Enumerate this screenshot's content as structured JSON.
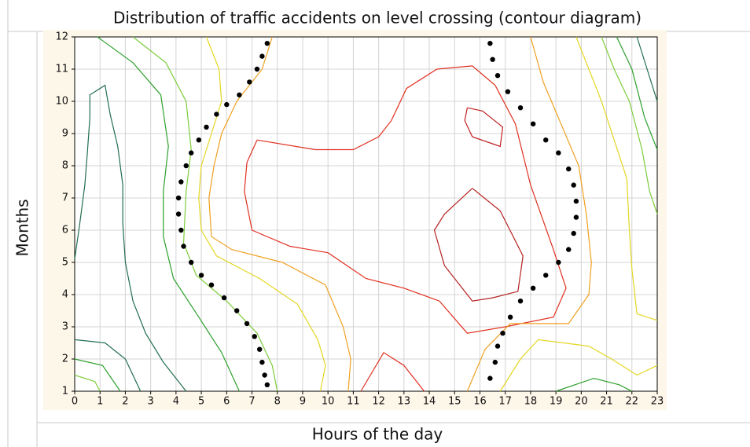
{
  "chart_data": {
    "type": "contour",
    "title": "Distribution of traffic accidents on level crossing (contour diagram)",
    "xlabel": "Hours of the day",
    "ylabel": "Months",
    "xlim": [
      0,
      23
    ],
    "ylim": [
      1,
      12
    ],
    "xticks": [
      0,
      1,
      2,
      3,
      4,
      5,
      6,
      7,
      8,
      9,
      10,
      11,
      12,
      13,
      14,
      15,
      16,
      17,
      18,
      19,
      20,
      21,
      22,
      23
    ],
    "yticks": [
      1,
      2,
      3,
      4,
      5,
      6,
      7,
      8,
      9,
      10,
      11,
      12
    ],
    "grid": true,
    "contours": [
      {
        "color": "#226e4e",
        "x": [
          0,
          0.2,
          0.4,
          0.5,
          0.6,
          0.6,
          1.2,
          1.4,
          1.7,
          1.9,
          1.9,
          2.0,
          2.3,
          2.8,
          3.5,
          4.4
        ],
        "y": [
          5.1,
          6.2,
          7.4,
          8.4,
          9.5,
          10.2,
          10.5,
          9.6,
          8.6,
          7.4,
          6.2,
          5.0,
          3.8,
          2.8,
          1.9,
          1
        ]
      },
      {
        "color": "#2ca02c",
        "x": [
          0.9,
          2.3,
          3.4,
          3.7,
          3.5,
          3.5,
          3.9,
          4.9,
          5.8,
          6.5
        ],
        "y": [
          12,
          11.2,
          10.2,
          8.6,
          7.2,
          5.8,
          4.5,
          3.3,
          2.2,
          1
        ]
      },
      {
        "color": "#7ccd3c",
        "x": [
          2.3,
          3.6,
          4.4,
          4.6,
          4.4,
          4.3,
          4.8,
          6.0,
          7.2,
          7.8,
          8.0
        ],
        "y": [
          12,
          11.2,
          10,
          8.5,
          7.2,
          5.6,
          4.6,
          3.8,
          2.8,
          1.8,
          1
        ]
      },
      {
        "color": "#e3d622",
        "x": [
          5.2,
          5.7,
          5.8,
          5.4,
          5.0,
          4.9,
          5.0,
          5.6,
          7.3,
          8.8,
          9.6,
          9.9,
          9.7
        ],
        "y": [
          12,
          11,
          10,
          9,
          8,
          7,
          6,
          5.2,
          4.5,
          3.7,
          2.6,
          1.8,
          1
        ]
      },
      {
        "color": "#f0a020",
        "x": [
          7.8,
          7.4,
          6.4,
          5.8,
          5.5,
          5.3,
          5.4,
          6.2,
          8.2,
          9.9,
          10.6,
          10.9,
          10.8
        ],
        "y": [
          12,
          11,
          10,
          9,
          8,
          7,
          5.8,
          5.4,
          5,
          4.3,
          3,
          2,
          1
        ]
      },
      {
        "color": "#e03020",
        "x": [
          7.2,
          9.5,
          11.0,
          12.0,
          12.5,
          13.1,
          14.3,
          15.7,
          16.6,
          17.4,
          18.0,
          18.9,
          19.4,
          18.9,
          17.0,
          15.5,
          14.4,
          13.0,
          11.5,
          10.0,
          8.5,
          7.0,
          6.7,
          6.8,
          7.2
        ],
        "y": [
          8.8,
          8.5,
          8.5,
          8.9,
          9.4,
          10.4,
          11.0,
          11.1,
          10.5,
          9.3,
          7.4,
          5.4,
          4.2,
          3.3,
          3.0,
          2.8,
          3.8,
          4.2,
          4.5,
          5.3,
          5.5,
          6.0,
          7.2,
          8.1,
          8.8
        ]
      },
      {
        "color": "#c02020",
        "x": [
          15.5,
          16.1,
          16.9,
          16.8,
          15.7,
          15.4,
          15.5
        ],
        "y": [
          9.8,
          9.7,
          9.2,
          8.6,
          8.9,
          9.4,
          9.8
        ]
      },
      {
        "color": "#b52020",
        "x": [
          15.7,
          16.8,
          17.7,
          17.5,
          16.5,
          15.7,
          14.6,
          14.2,
          14.6,
          15.7
        ],
        "y": [
          7.3,
          6.6,
          5.2,
          4.1,
          3.9,
          3.8,
          4.9,
          6.0,
          6.5,
          7.3
        ]
      },
      {
        "color": "#e03020",
        "x": [
          11.3,
          12.2,
          13.0,
          13.8
        ],
        "y": [
          1,
          2.2,
          1.8,
          1
        ]
      },
      {
        "color": "#f0a020",
        "x": [
          18.0,
          18.5,
          19.2,
          19.9,
          20.2,
          20.4,
          20.3,
          19.5,
          17.2,
          16.2,
          15.5
        ],
        "y": [
          12,
          10.6,
          9.3,
          8.0,
          6.5,
          5,
          4,
          3.1,
          3.1,
          2.3,
          1
        ]
      },
      {
        "color": "#e3d622",
        "x": [
          19.8,
          20.3,
          20.8,
          21.3,
          21.8,
          21.9,
          22.0,
          22.2,
          23
        ],
        "y": [
          12,
          11,
          10,
          8.8,
          7.6,
          6,
          4.8,
          3.4,
          3.2
        ]
      },
      {
        "color": "#7ccd3c",
        "x": [
          20.8,
          21.3,
          21.9,
          22.4,
          22.7,
          23
        ],
        "y": [
          12,
          11,
          10,
          8.5,
          7.2,
          6.5
        ]
      },
      {
        "color": "#2ca02c",
        "x": [
          21.4,
          22,
          22.5,
          23
        ],
        "y": [
          12,
          11,
          9.5,
          8.5
        ]
      },
      {
        "color": "#226e4e",
        "x": [
          22.2,
          22.6,
          23
        ],
        "y": [
          12,
          11,
          10
        ]
      },
      {
        "color": "#e3d622",
        "x": [
          16.8,
          17.6,
          18.3,
          20.3,
          21.2,
          22.2,
          23
        ],
        "y": [
          1,
          2,
          2.6,
          2.4,
          2.0,
          1.5,
          1.8
        ]
      },
      {
        "color": "#2ca02c",
        "x": [
          19.0,
          20.5,
          21.5,
          22
        ],
        "y": [
          1,
          1.4,
          1.2,
          1
        ]
      },
      {
        "color": "#226e4e",
        "x": [
          0,
          1.2,
          2.0,
          2.6
        ],
        "y": [
          2.6,
          2.5,
          2.0,
          1
        ]
      },
      {
        "color": "#2ca02c",
        "x": [
          0,
          1.1,
          1.8
        ],
        "y": [
          2.0,
          1.8,
          1
        ]
      },
      {
        "color": "#7ccd3c",
        "x": [
          0,
          0.8,
          1.0
        ],
        "y": [
          1.5,
          1.3,
          1
        ]
      }
    ],
    "dots": [
      {
        "color": "#000000",
        "x": [
          7.6,
          7.4,
          7.2,
          6.9,
          6.5,
          6.0,
          5.6,
          5.2,
          4.9,
          4.6,
          4.4,
          4.2,
          4.1,
          4.1,
          4.2,
          4.3,
          4.6,
          5.0,
          5.4,
          5.9,
          6.4,
          6.8,
          7.1,
          7.3,
          7.4,
          7.5,
          7.6
        ],
        "y": [
          11.8,
          11.4,
          11.0,
          10.6,
          10.2,
          9.9,
          9.6,
          9.2,
          8.8,
          8.4,
          8.0,
          7.5,
          7.0,
          6.5,
          6.0,
          5.5,
          5.0,
          4.6,
          4.3,
          3.9,
          3.5,
          3.1,
          2.7,
          2.3,
          1.9,
          1.5,
          1.2
        ]
      },
      {
        "color": "#000000",
        "x": [
          16.4,
          16.5,
          16.7,
          17.1,
          17.6,
          18.1,
          18.6,
          19.1,
          19.5,
          19.7,
          19.8,
          19.8,
          19.7,
          19.5,
          19.1,
          18.6,
          18.1,
          17.6,
          17.2,
          16.9,
          16.7,
          16.6,
          16.4
        ],
        "y": [
          11.8,
          11.3,
          10.8,
          10.3,
          9.8,
          9.3,
          8.8,
          8.4,
          7.9,
          7.4,
          6.9,
          6.4,
          5.9,
          5.4,
          5.0,
          4.6,
          4.2,
          3.8,
          3.3,
          2.8,
          2.4,
          1.9,
          1.4
        ]
      }
    ]
  }
}
